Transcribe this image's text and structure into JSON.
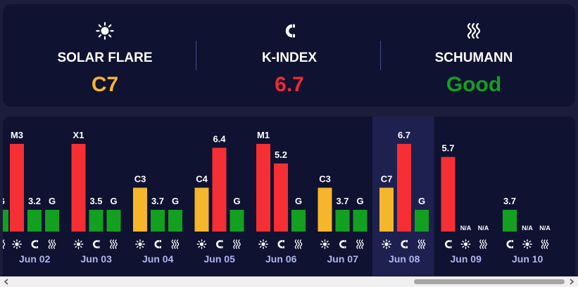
{
  "metrics": [
    {
      "label": "SOLAR FLARE",
      "value": "C7",
      "color": "#f5b62c",
      "icon": "sun-icon"
    },
    {
      "label": "K-INDEX",
      "value": "6.7",
      "color": "#ee2a35",
      "icon": "magnet-icon"
    },
    {
      "label": "SCHUMANN",
      "value": "Good",
      "color": "#13a020",
      "icon": "waves-icon"
    }
  ],
  "chart_data": {
    "type": "bar",
    "colors": {
      "flare_c": "#f5b62c",
      "flare_mx": "#f52f33",
      "kp_low": "#13a020",
      "kp_high": "#f52f33",
      "schumann_good": "#13a020",
      "highlight": "#1e2150"
    },
    "selected_day": "Jun 08",
    "days": [
      {
        "date": "",
        "partial": true,
        "flare": null,
        "kp": null,
        "schumann": "G",
        "schumann_label": "G",
        "icons": [
          "waves-icon"
        ]
      },
      {
        "date": "Jun 02",
        "flare": "M3",
        "flare_level": 1.0,
        "kp": 3.2,
        "schumann": "G",
        "icons": [
          "sun-icon",
          "magnet-icon",
          "waves-icon"
        ]
      },
      {
        "date": "Jun 03",
        "flare": "X1",
        "flare_level": 1.0,
        "kp": 3.5,
        "schumann": "G",
        "icons": [
          "sun-icon",
          "magnet-icon",
          "waves-icon"
        ]
      },
      {
        "date": "Jun 04",
        "flare": "C3",
        "flare_level": 0.5,
        "kp": 3.7,
        "schumann": "G",
        "icons": [
          "sun-icon",
          "magnet-icon",
          "waves-icon"
        ]
      },
      {
        "date": "Jun 05",
        "flare": "C4",
        "flare_level": 0.5,
        "kp": 6.4,
        "schumann": "G",
        "icons": [
          "sun-icon",
          "magnet-icon",
          "waves-icon"
        ]
      },
      {
        "date": "Jun 06",
        "flare": "M1",
        "flare_level": 1.0,
        "kp": 5.2,
        "schumann": "G",
        "icons": [
          "sun-icon",
          "magnet-icon",
          "waves-icon"
        ]
      },
      {
        "date": "Jun 07",
        "flare": "C3",
        "flare_level": 0.5,
        "kp": 3.7,
        "schumann": "G",
        "icons": [
          "sun-icon",
          "magnet-icon",
          "waves-icon"
        ]
      },
      {
        "date": "Jun 08",
        "flare": "C7",
        "flare_level": 0.5,
        "kp": 6.7,
        "schumann": "G",
        "icons": [
          "sun-icon",
          "magnet-icon",
          "waves-icon"
        ]
      },
      {
        "date": "Jun 09",
        "kp": 5.7,
        "flare": "N/A",
        "schumann": "N/A",
        "order": "kp-first",
        "icons": [
          "magnet-icon",
          "sun-icon",
          "waves-icon"
        ]
      },
      {
        "date": "Jun 10",
        "kp": 3.7,
        "flare": "N/A",
        "schumann": "N/A",
        "order": "kp-first",
        "icons": [
          "magnet-icon",
          "sun-icon",
          "waves-icon"
        ]
      }
    ]
  }
}
